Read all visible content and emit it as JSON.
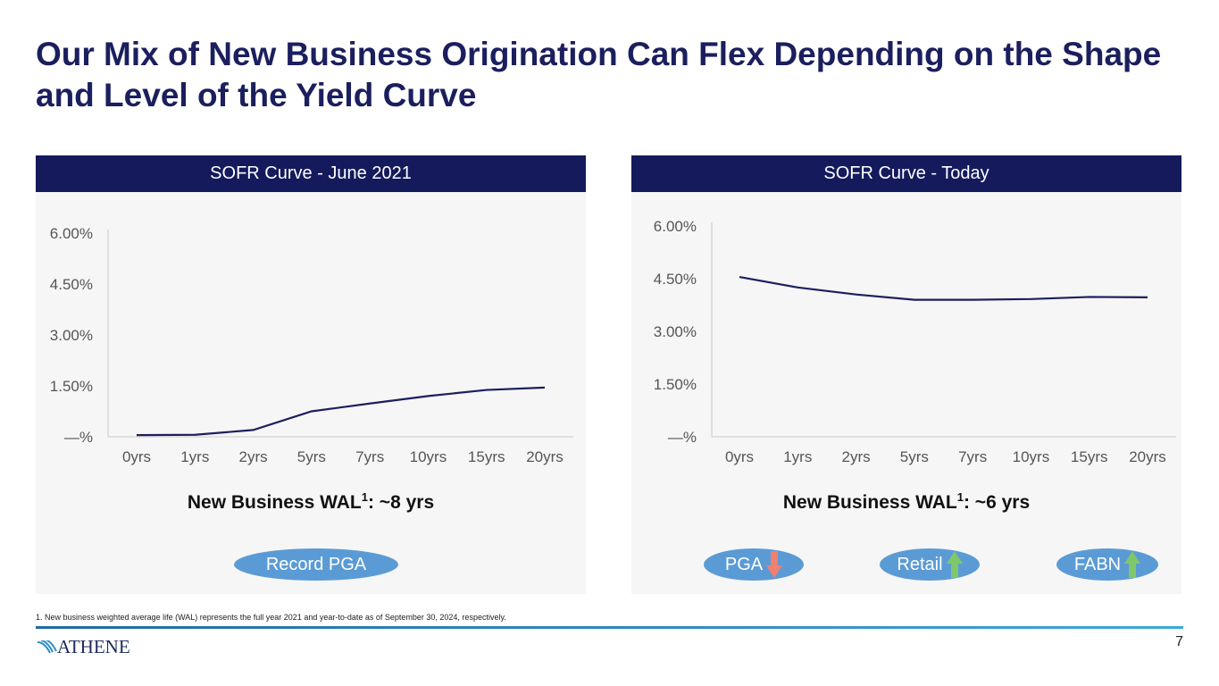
{
  "title": "Our Mix of New Business Origination Can Flex Depending on the Shape and Level of the Yield Curve",
  "colors": {
    "navy": "#141a5c",
    "line": "#1b1f5e",
    "pill": "#5b9bd5",
    "arrow_down": "#f08070",
    "arrow_up": "#7ec86a"
  },
  "panels": [
    {
      "header": "SOFR Curve - June 2021",
      "wal_label": "New Business WAL",
      "wal_sup": "1",
      "wal_value": ": ~8 yrs",
      "pills": [
        {
          "label": "Record PGA",
          "arrow": ""
        }
      ]
    },
    {
      "header": "SOFR Curve - Today",
      "wal_label": "New Business WAL",
      "wal_sup": "1",
      "wal_value": ": ~6 yrs",
      "pills": [
        {
          "label": "PGA",
          "arrow": "down-arrow-icon"
        },
        {
          "label": "Retail",
          "arrow": "up-arrow-icon"
        },
        {
          "label": "FABN",
          "arrow": "up-arrow-icon"
        }
      ]
    }
  ],
  "chart_data": [
    {
      "type": "line",
      "title": "SOFR Curve - June 2021",
      "categories": [
        "0yrs",
        "1yrs",
        "2yrs",
        "5yrs",
        "7yrs",
        "10yrs",
        "15yrs",
        "20yrs"
      ],
      "series": [
        {
          "name": "SOFR",
          "values": [
            0.05,
            0.06,
            0.2,
            0.75,
            0.98,
            1.2,
            1.38,
            1.45
          ]
        }
      ],
      "ylim": [
        0,
        6
      ],
      "yticks": [
        0,
        1.5,
        3.0,
        4.5,
        6.0
      ],
      "ytick_labels": [
        "—%",
        "1.50%",
        "3.00%",
        "4.50%",
        "6.00%"
      ]
    },
    {
      "type": "line",
      "title": "SOFR Curve - Today",
      "categories": [
        "0yrs",
        "1yrs",
        "2yrs",
        "5yrs",
        "7yrs",
        "10yrs",
        "15yrs",
        "20yrs"
      ],
      "series": [
        {
          "name": "SOFR",
          "values": [
            4.55,
            4.25,
            4.05,
            3.9,
            3.9,
            3.92,
            3.98,
            3.97
          ]
        }
      ],
      "ylim": [
        0,
        6
      ],
      "yticks": [
        0,
        1.5,
        3.0,
        4.5,
        6.0
      ],
      "ytick_labels": [
        "—%",
        "1.50%",
        "3.00%",
        "4.50%",
        "6.00%"
      ]
    }
  ],
  "footnote": "1. New business weighted average life (WAL) represents the full year 2021 and year-to-date as of September 30, 2024, respectively.",
  "logo_text": "ATHENE",
  "page_number": "7"
}
